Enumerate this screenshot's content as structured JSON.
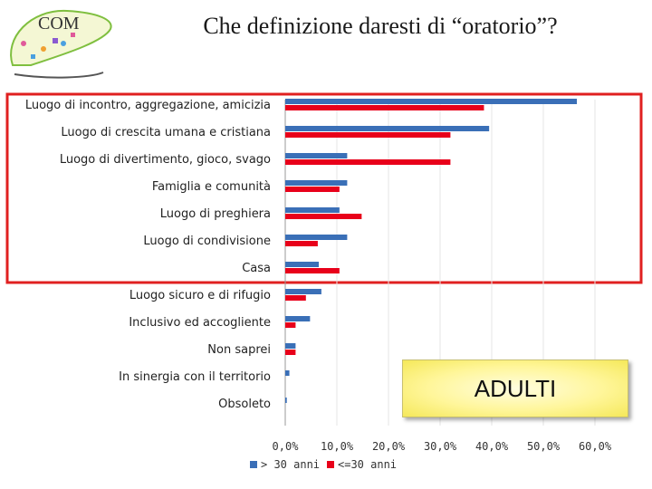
{
  "logo": {
    "text": "COM",
    "icon": "oratory-logo-icon"
  },
  "title": "Che definizione daresti di “oratorio”?",
  "badge": "ADULTI",
  "colors": {
    "series_over30": "#3a6fb7",
    "series_under30": "#e8001a",
    "highlight": "#e02020"
  },
  "chart_data": {
    "type": "bar",
    "orientation": "horizontal",
    "title": "Che definizione daresti di “oratorio”?",
    "categories": [
      "Luogo di incontro, aggregazione, amicizia",
      "Luogo di crescita umana e cristiana",
      "Luogo di divertimento, gioco, svago",
      "Famiglia e comunità",
      "Luogo di preghiera",
      "Luogo di condivisione",
      "Casa",
      "Luogo sicuro e di rifugio",
      "Inclusivo ed accogliente",
      "Non saprei",
      "In sinergia con il territorio",
      "Obsoleto"
    ],
    "series": [
      {
        "name": "> 30 anni",
        "values": [
          56.5,
          39.5,
          12.0,
          12.0,
          10.5,
          12.0,
          6.5,
          7.0,
          4.8,
          2.0,
          0.8,
          0.3
        ]
      },
      {
        "name": "<=30 anni",
        "values": [
          38.5,
          32.0,
          32.0,
          10.5,
          14.8,
          6.3,
          10.5,
          4.0,
          2.0,
          2.0,
          0.0,
          0.0
        ]
      }
    ],
    "xlim": [
      0,
      60
    ],
    "xticks": [
      0,
      10,
      20,
      30,
      40,
      50,
      60
    ],
    "xtick_labels": [
      "0,0%",
      "10,0%",
      "20,0%",
      "30,0%",
      "40,0%",
      "50,0%",
      "60,0%"
    ],
    "legend_position": "bottom-left",
    "highlighted_categories": 7
  }
}
